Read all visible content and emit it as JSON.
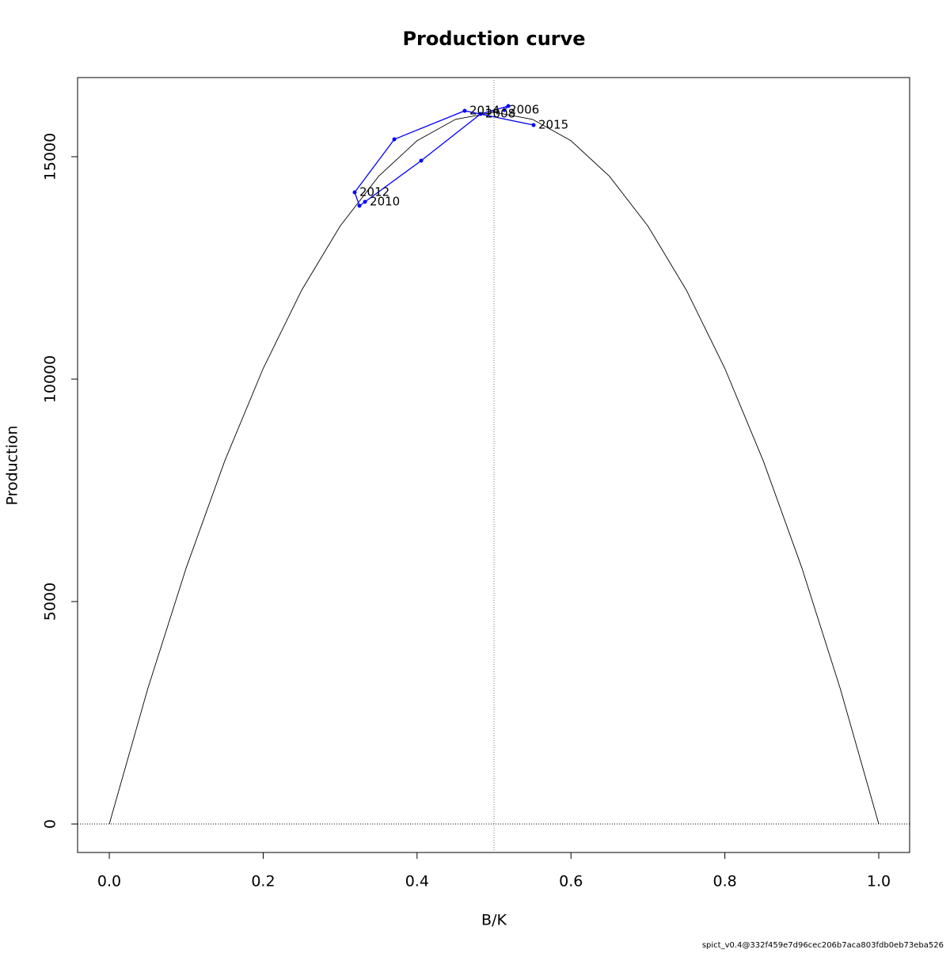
{
  "chart_data": {
    "type": "line",
    "title": "Production curve",
    "x_label": "B/K",
    "y_label": "Production",
    "footer": "spict_v0.4@332f459e7d96cec206b7aca803fdb0eb73eba526",
    "xlim": [
      -0.0412,
      1.0401
    ],
    "ylim": [
      -640,
      16779
    ],
    "xticks": [
      {
        "value": 0,
        "label": "0.0"
      },
      0.2,
      0.4,
      0.6,
      0.8,
      {
        "value": 1,
        "label": "1.0"
      }
    ],
    "yticks": [
      0,
      5000,
      10000,
      15000
    ],
    "vline": 0.5,
    "hline": 0,
    "series": [
      {
        "color": "#000000",
        "markers": false,
        "x": [
          0,
          0.05,
          0.1,
          0.15,
          0.2,
          0.25,
          0.3,
          0.35,
          0.4,
          0.45,
          0.5,
          0.55,
          0.6,
          0.65,
          0.7,
          0.75,
          0.8,
          0.85,
          0.9,
          0.95,
          1
        ],
        "values": [
          0,
          3040,
          5760,
          8160,
          10240,
          12000,
          13440,
          14560,
          15360,
          15840,
          16000,
          15840,
          15360,
          14560,
          13440,
          12000,
          10240,
          8160,
          5760,
          3040,
          0
        ]
      },
      {
        "color": "#0000ff",
        "markers": true,
        "x": [
          0.5134,
          0.5185,
          0.4825,
          0.4053,
          0.3323,
          0.3251,
          0.3189,
          0.3704,
          0.4619,
          0.5514
        ],
        "values": [
          16050,
          16139,
          15961,
          14911,
          13986,
          13897,
          14199,
          15391,
          16032,
          15712
        ],
        "point_labels": [
          "2006",
          null,
          "2008",
          null,
          "2010",
          null,
          "2012",
          null,
          "2014",
          "2015"
        ]
      }
    ]
  }
}
